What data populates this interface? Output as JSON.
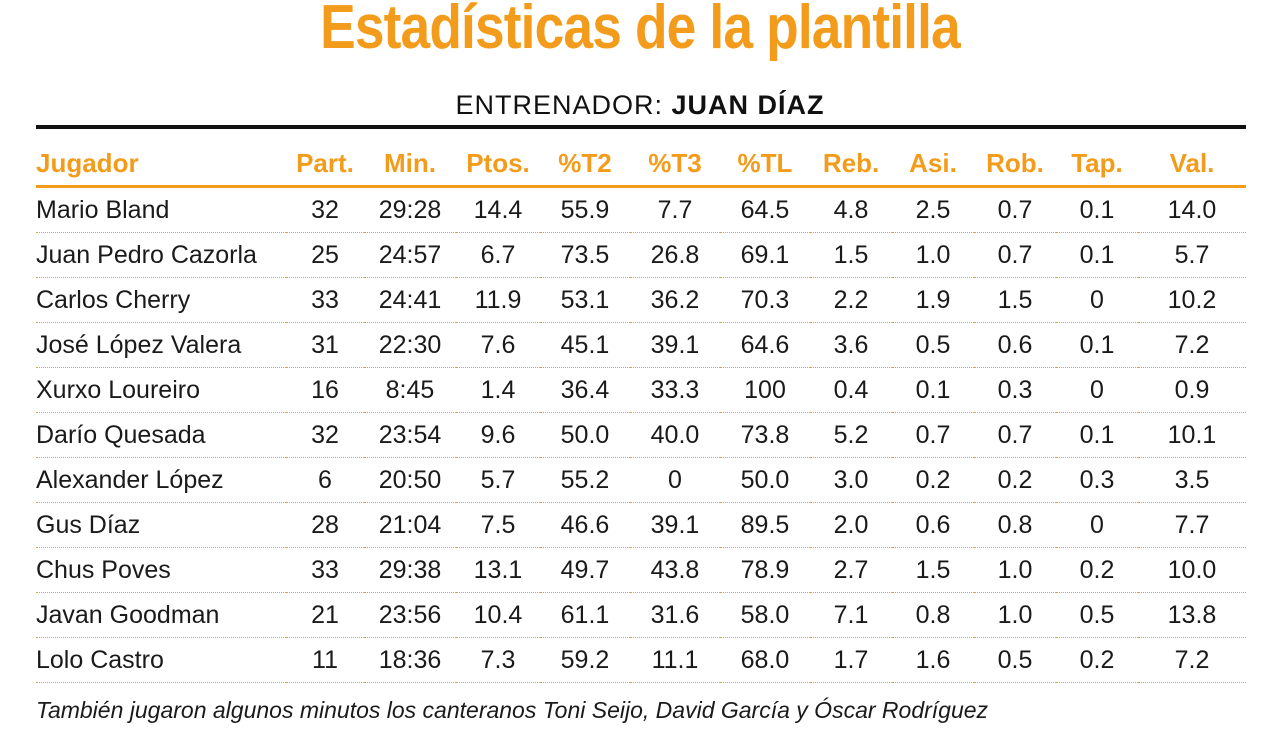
{
  "title": "Estadísticas de la plantilla",
  "coach": {
    "label": "ENTRENADOR:",
    "name": "JUAN DÍAZ"
  },
  "table": {
    "headers": [
      "Jugador",
      "Part.",
      "Min.",
      "Ptos.",
      "%T2",
      "%T3",
      "%TL",
      "Reb.",
      "Asi.",
      "Rob.",
      "Tap.",
      "Val."
    ],
    "rows": [
      [
        "Mario Bland",
        "32",
        "29:28",
        "14.4",
        "55.9",
        "7.7",
        "64.5",
        "4.8",
        "2.5",
        "0.7",
        "0.1",
        "14.0"
      ],
      [
        "Juan Pedro Cazorla",
        "25",
        "24:57",
        "6.7",
        "73.5",
        "26.8",
        "69.1",
        "1.5",
        "1.0",
        "0.7",
        "0.1",
        "5.7"
      ],
      [
        "Carlos Cherry",
        "33",
        "24:41",
        "11.9",
        "53.1",
        "36.2",
        "70.3",
        "2.2",
        "1.9",
        "1.5",
        "0",
        "10.2"
      ],
      [
        "José López Valera",
        "31",
        "22:30",
        "7.6",
        "45.1",
        "39.1",
        "64.6",
        "3.6",
        "0.5",
        "0.6",
        "0.1",
        "7.2"
      ],
      [
        "Xurxo Loureiro",
        "16",
        "8:45",
        "1.4",
        "36.4",
        "33.3",
        "100",
        "0.4",
        "0.1",
        "0.3",
        "0",
        "0.9"
      ],
      [
        "Darío Quesada",
        "32",
        "23:54",
        "9.6",
        "50.0",
        "40.0",
        "73.8",
        "5.2",
        "0.7",
        "0.7",
        "0.1",
        "10.1"
      ],
      [
        "Alexander López",
        "6",
        "20:50",
        "5.7",
        "55.2",
        "0",
        "50.0",
        "3.0",
        "0.2",
        "0.2",
        "0.3",
        "3.5"
      ],
      [
        "Gus Díaz",
        "28",
        "21:04",
        "7.5",
        "46.6",
        "39.1",
        "89.5",
        "2.0",
        "0.6",
        "0.8",
        "0",
        "7.7"
      ],
      [
        "Chus Poves",
        "33",
        "29:38",
        "13.1",
        "49.7",
        "43.8",
        "78.9",
        "2.7",
        "1.5",
        "1.0",
        "0.2",
        "10.0"
      ],
      [
        "Javan Goodman",
        "21",
        "23:56",
        "10.4",
        "61.1",
        "31.6",
        "58.0",
        "7.1",
        "0.8",
        "1.0",
        "0.5",
        "13.8"
      ],
      [
        "Lolo Castro",
        "11",
        "18:36",
        "7.3",
        "59.2",
        "11.1",
        "68.0",
        "1.7",
        "1.6",
        "0.5",
        "0.2",
        "7.2"
      ]
    ]
  },
  "footnote": "También jugaron algunos minutos los canteranos Toni Seijo, David García y Óscar Rodríguez",
  "colors": {
    "accent": "#f39c1b",
    "text": "#1a1a1a",
    "rule": "#111111"
  }
}
